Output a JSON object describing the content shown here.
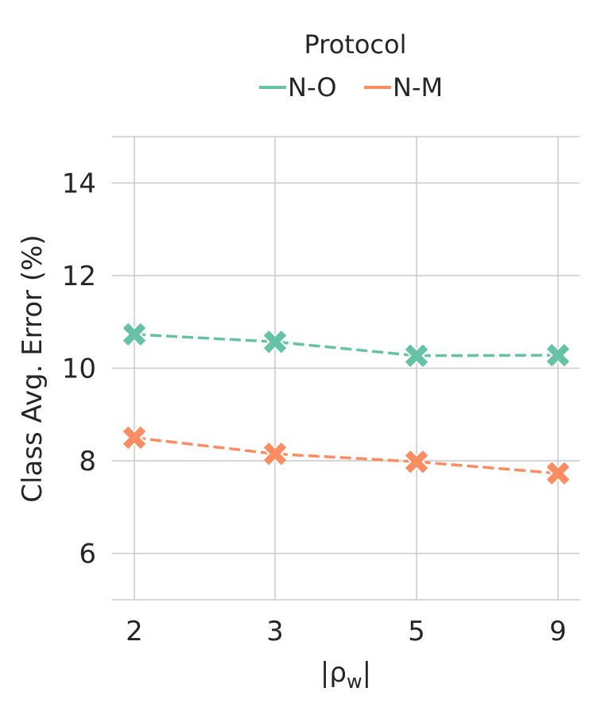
{
  "chart_data": {
    "type": "line",
    "categories": [
      "2",
      "3",
      "5",
      "9"
    ],
    "xlabel": "|ρ_w|",
    "ylabel": "Class Avg. Error (%)",
    "ylim": [
      5,
      15
    ],
    "yticks": [
      6,
      8,
      10,
      12,
      14
    ],
    "grid": true,
    "legend": {
      "title": "Protocol",
      "placement": "top-center"
    },
    "series": [
      {
        "name": "N-O",
        "color": "#66c2a5",
        "marker": "X",
        "linestyle": "dashed",
        "values": [
          10.73,
          10.57,
          10.27,
          10.28
        ]
      },
      {
        "name": "N-M",
        "color": "#fc8d62",
        "marker": "X",
        "linestyle": "dashed",
        "values": [
          8.5,
          8.15,
          7.98,
          7.73
        ]
      }
    ]
  }
}
